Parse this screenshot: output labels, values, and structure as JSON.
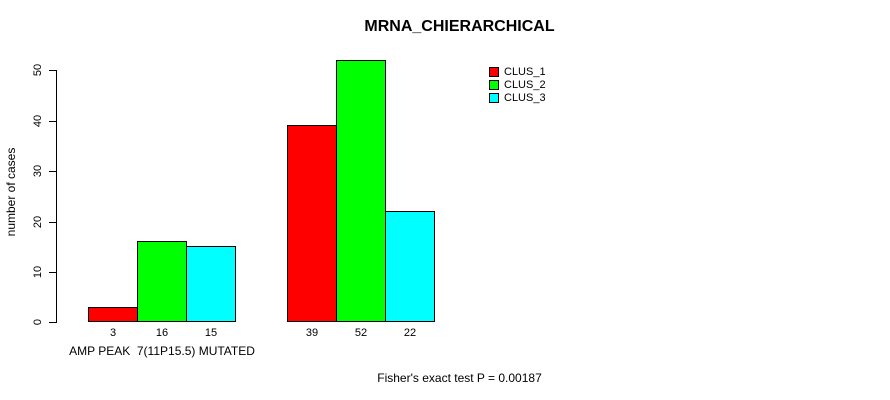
{
  "chart_data": {
    "type": "bar",
    "title": "MRNA_CHIERARCHICAL",
    "ylabel": "number of cases",
    "xlabel": "",
    "categories": [
      "AMP PEAK  7(11P15.5) MUTATED",
      ""
    ],
    "series": [
      {
        "name": "CLUS_1",
        "color": "#ff0000",
        "values": [
          3,
          39
        ]
      },
      {
        "name": "CLUS_2",
        "color": "#00ff00",
        "values": [
          16,
          52
        ]
      },
      {
        "name": "CLUS_3",
        "color": "#00ffff",
        "values": [
          15,
          22
        ]
      }
    ],
    "bar_value_labels": [
      [
        3,
        16,
        15
      ],
      [
        39,
        52,
        22
      ]
    ],
    "ylim": [
      0,
      50
    ],
    "yticks": [
      0,
      10,
      20,
      30,
      40,
      50
    ],
    "grid": false,
    "bar_border_color": "#000000",
    "background_color": "#ffffff",
    "legend": {
      "position": "top-right"
    },
    "annotation": "Fisher's exact test P = 0.00187"
  }
}
